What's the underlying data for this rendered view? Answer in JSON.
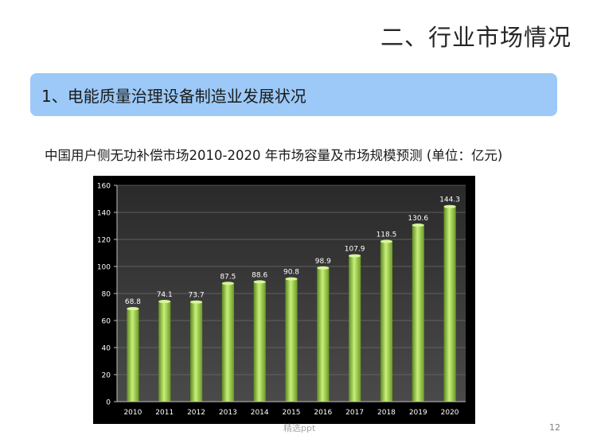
{
  "header": {
    "section_title": "二、行业市场情况"
  },
  "banner": {
    "text": "1、电能质量治理设备制造业发展状况"
  },
  "chart_caption": "中国用户侧无功补偿市场2010-2020 年市场容量及市场规模预测 (单位：亿元)",
  "footer": {
    "watermark": "精选ppt",
    "page_number": "12"
  },
  "colors": {
    "banner": "#9cc9f7",
    "bar": "#8dc63f",
    "chart_background": "#000000",
    "plot_background": "#3a3a3a"
  },
  "chart_data": {
    "type": "bar",
    "title": "中国用户侧无功补偿市场2010-2020 年市场容量及市场规模预测 (单位：亿元)",
    "categories": [
      "2010",
      "2011",
      "2012",
      "2013",
      "2014",
      "2015",
      "2016",
      "2017",
      "2018",
      "2019",
      "2020"
    ],
    "values": [
      68.8,
      74.1,
      73.7,
      87.5,
      88.6,
      90.8,
      98.9,
      107.9,
      118.5,
      130.6,
      144.3
    ],
    "value_labels": [
      "68.8",
      "74.1",
      "73.7",
      "87.5",
      "88.6",
      "90.8",
      "98.9",
      "107.9",
      "118.5",
      "130.6",
      "144.3"
    ],
    "y_ticks": [
      "0",
      "20",
      "40",
      "60",
      "80",
      "100",
      "120",
      "140",
      "160"
    ],
    "ylim": [
      0,
      160
    ],
    "grid": true,
    "legend": false
  }
}
